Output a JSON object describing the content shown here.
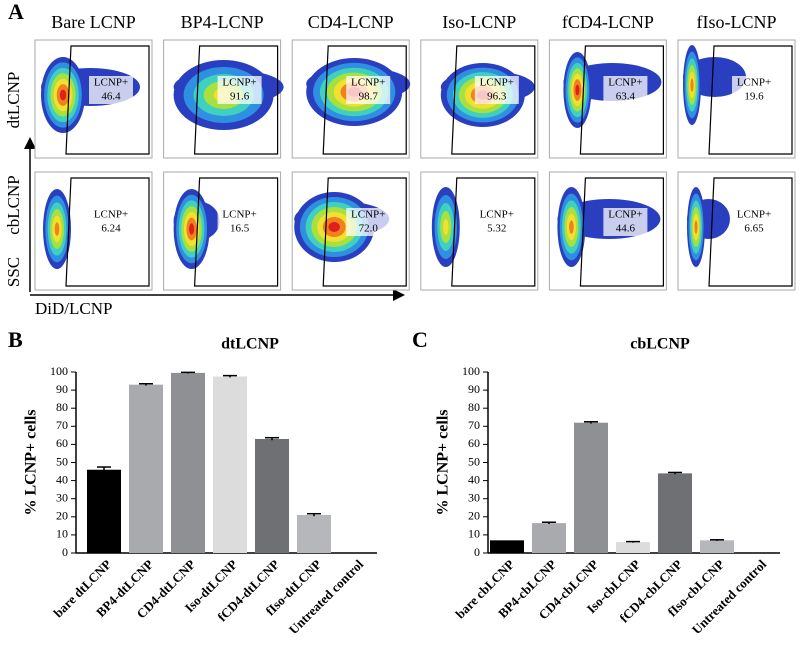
{
  "panel_letters": [
    "A",
    "B",
    "C"
  ],
  "panel_a": {
    "row_labels": [
      "dtLCNP",
      "cbLCNP"
    ],
    "y_axis_label": "SSC",
    "x_axis_label": "DiD/LCNP",
    "gate_label": "LCNP+",
    "columns": [
      {
        "title": "Bare LCNP",
        "dt": "46.4",
        "cb": "6.24"
      },
      {
        "title": "BP4-LCNP",
        "dt": "91.6",
        "cb": "16.5"
      },
      {
        "title": "CD4-LCNP",
        "dt": "98.7",
        "cb": "72.0"
      },
      {
        "title": "Iso-LCNP",
        "dt": "96.3",
        "cb": "5.32"
      },
      {
        "title": "fCD4-LCNP",
        "dt": "63.4",
        "cb": "44.6"
      },
      {
        "title": "fIso-LCNP",
        "dt": "19.6",
        "cb": "6.65"
      }
    ]
  },
  "chart_data": [
    {
      "type": "bar",
      "title": "dtLCNP",
      "y_label": "% LCNP+ cells",
      "categories": [
        "bare dtLCNP",
        "BP4-dtLCNP",
        "CD4-dtLCNP",
        "Iso-dtLCNP",
        "fCD4-dtLCNP",
        "fIso-dtLCNP",
        "Untreated control"
      ],
      "values": [
        46,
        93,
        99.5,
        97.5,
        63,
        21,
        0
      ],
      "errors": [
        1.5,
        0.5,
        0.3,
        0.5,
        0.7,
        0.7,
        0
      ],
      "colors": [
        "#000000",
        "#a9aaae",
        "#8f9094",
        "#dcdcdc",
        "#6f7074",
        "#b6b7bb",
        "#ffffff"
      ],
      "ylim": [
        0,
        100
      ],
      "yticks": [
        0,
        10,
        20,
        30,
        40,
        50,
        60,
        70,
        80,
        90,
        100
      ]
    },
    {
      "type": "bar",
      "title": "cbLCNP",
      "y_label": "% LCNP+ cells",
      "categories": [
        "bare cbLCNP",
        "BP4-cbLCNP",
        "CD4-cbLCNP",
        "Iso-cbLCNP",
        "fCD4-cbLCNP",
        "fIso-cbLCNP",
        "Untreated control"
      ],
      "values": [
        7,
        16.5,
        72,
        6,
        44,
        7,
        0
      ],
      "errors": [
        0,
        0.5,
        0.5,
        0.3,
        0.5,
        0.3,
        0
      ],
      "colors": [
        "#000000",
        "#a9aaae",
        "#8f9094",
        "#dcdcdc",
        "#6f7074",
        "#b6b7bb",
        "#ffffff"
      ],
      "ylim": [
        0,
        100
      ],
      "yticks": [
        0,
        10,
        20,
        30,
        40,
        50,
        60,
        70,
        80,
        90,
        100
      ]
    }
  ]
}
